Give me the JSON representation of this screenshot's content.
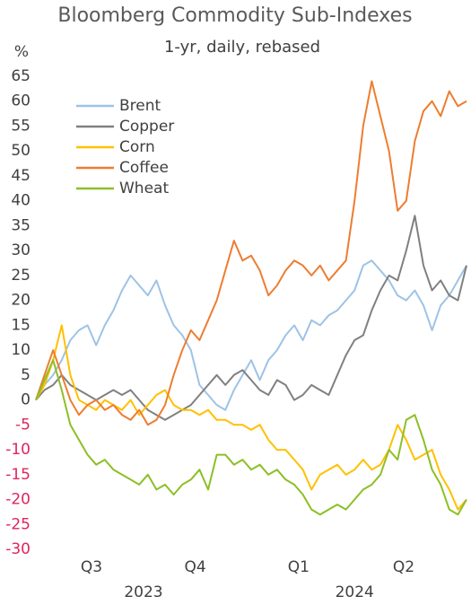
{
  "chart_data": {
    "type": "line",
    "title": "Bloomberg Commodity Sub-Indexes",
    "subtitle": "1-yr, daily, rebased",
    "y_label": "%",
    "x": [
      0,
      2,
      4,
      6,
      8,
      10,
      12,
      14,
      16,
      18,
      20,
      22,
      24,
      26,
      28,
      30,
      32,
      34,
      36,
      38,
      40,
      42,
      44,
      46,
      48,
      50,
      52,
      54,
      56,
      58,
      60,
      62,
      64,
      66,
      68,
      70,
      72,
      74,
      76,
      78,
      80,
      82,
      84,
      86,
      88,
      90,
      92,
      94,
      96,
      98,
      100
    ],
    "xlim": [
      0,
      100
    ],
    "xticks": [
      {
        "value": 12.9,
        "label": "Q3"
      },
      {
        "value": 37,
        "label": "Q4"
      },
      {
        "value": 61,
        "label": "Q1"
      },
      {
        "value": 85.4,
        "label": "Q2"
      }
    ],
    "x_group_labels": [
      {
        "value": 25,
        "label": "2023"
      },
      {
        "value": 74,
        "label": "2024"
      }
    ],
    "ylim": [
      -30,
      65
    ],
    "yticks": [
      65,
      60,
      55,
      50,
      45,
      40,
      35,
      30,
      25,
      20,
      15,
      10,
      5,
      0,
      -5,
      -10,
      -15,
      -20,
      -25,
      -30
    ],
    "negative_tick_color": "#e0245e",
    "legend": "upper left",
    "grid": false,
    "series": [
      {
        "name": "Brent",
        "color": "#9dc3e6",
        "values": [
          0,
          3,
          5,
          8,
          12,
          14,
          15,
          11,
          15,
          18,
          22,
          25,
          23,
          21,
          24,
          19,
          15,
          13,
          10,
          3,
          1,
          -1,
          -2,
          2,
          5,
          8,
          4,
          8,
          10,
          13,
          15,
          12,
          16,
          15,
          17,
          18,
          20,
          22,
          27,
          28,
          26,
          24,
          21,
          20,
          22,
          19,
          14,
          19,
          21,
          24,
          27
        ]
      },
      {
        "name": "Copper",
        "color": "#808080",
        "values": [
          0,
          2,
          3,
          5,
          3,
          2,
          1,
          0,
          1,
          2,
          1,
          2,
          0,
          -2,
          -3,
          -4,
          -3,
          -2,
          -1,
          1,
          3,
          5,
          3,
          5,
          6,
          4,
          2,
          1,
          4,
          3,
          0,
          1,
          3,
          2,
          1,
          5,
          9,
          12,
          13,
          18,
          22,
          25,
          24,
          30,
          37,
          27,
          22,
          24,
          21,
          20,
          27
        ]
      },
      {
        "name": "Corn",
        "color": "#ffc000",
        "values": [
          0,
          3,
          8,
          15,
          5,
          0,
          -1,
          -2,
          0,
          -1,
          -2,
          0,
          -3,
          -1,
          1,
          2,
          -1,
          -2,
          -2,
          -3,
          -2,
          -4,
          -4,
          -5,
          -5,
          -6,
          -5,
          -8,
          -10,
          -10,
          -12,
          -14,
          -18,
          -15,
          -14,
          -13,
          -15,
          -14,
          -12,
          -14,
          -13,
          -10,
          -5,
          -8,
          -12,
          -11,
          -10,
          -15,
          -18,
          -22,
          -20
        ]
      },
      {
        "name": "Coffee",
        "color": "#ed7d31",
        "values": [
          0,
          5,
          10,
          5,
          0,
          -3,
          -1,
          0,
          -2,
          -1,
          -3,
          -4,
          -2,
          -5,
          -4,
          -1,
          5,
          10,
          14,
          12,
          16,
          20,
          26,
          32,
          28,
          29,
          26,
          21,
          23,
          26,
          28,
          27,
          25,
          27,
          24,
          26,
          28,
          40,
          55,
          64,
          57,
          50,
          38,
          40,
          52,
          58,
          60,
          57,
          62,
          59,
          60
        ]
      },
      {
        "name": "Wheat",
        "color": "#8cbf26",
        "values": [
          0,
          4,
          8,
          2,
          -5,
          -8,
          -11,
          -13,
          -12,
          -14,
          -15,
          -16,
          -17,
          -15,
          -18,
          -17,
          -19,
          -17,
          -16,
          -14,
          -18,
          -11,
          -11,
          -13,
          -12,
          -14,
          -13,
          -15,
          -14,
          -16,
          -17,
          -19,
          -22,
          -23,
          -22,
          -21,
          -22,
          -20,
          -18,
          -17,
          -15,
          -10,
          -12,
          -4,
          -3,
          -8,
          -14,
          -17,
          -22,
          -23,
          -20
        ]
      }
    ]
  }
}
